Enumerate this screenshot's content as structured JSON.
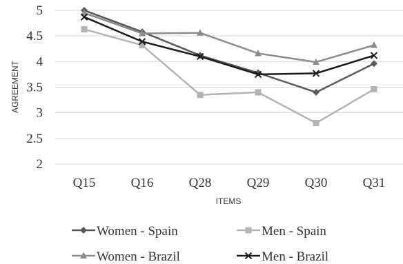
{
  "chart_data": {
    "type": "line",
    "title": "",
    "xlabel": "ITEMS",
    "ylabel": "AGREEMENT",
    "categories": [
      "Q15",
      "Q16",
      "Q28",
      "Q29",
      "Q30",
      "Q31"
    ],
    "ylim": [
      2,
      5
    ],
    "yticks": [
      "2",
      "2.5",
      "3",
      "3.5",
      "4",
      "4.5",
      "5"
    ],
    "grid": true,
    "legend_position": "bottom",
    "series": [
      {
        "name": "Women - Spain",
        "values": [
          5.0,
          4.58,
          4.12,
          3.78,
          3.4,
          3.96
        ],
        "color": "#595959",
        "marker": "diamond"
      },
      {
        "name": "Men - Spain",
        "values": [
          4.63,
          4.32,
          3.35,
          3.4,
          2.8,
          3.46
        ],
        "color": "#b3b3b3",
        "marker": "square"
      },
      {
        "name": "Women - Brazil",
        "values": [
          4.95,
          4.55,
          4.56,
          4.16,
          3.99,
          4.32
        ],
        "color": "#8c8c8c",
        "marker": "triangle"
      },
      {
        "name": "Men - Brazil",
        "values": [
          4.87,
          4.39,
          4.1,
          3.75,
          3.77,
          4.12
        ],
        "color": "#1a1a1a",
        "marker": "x"
      }
    ]
  }
}
